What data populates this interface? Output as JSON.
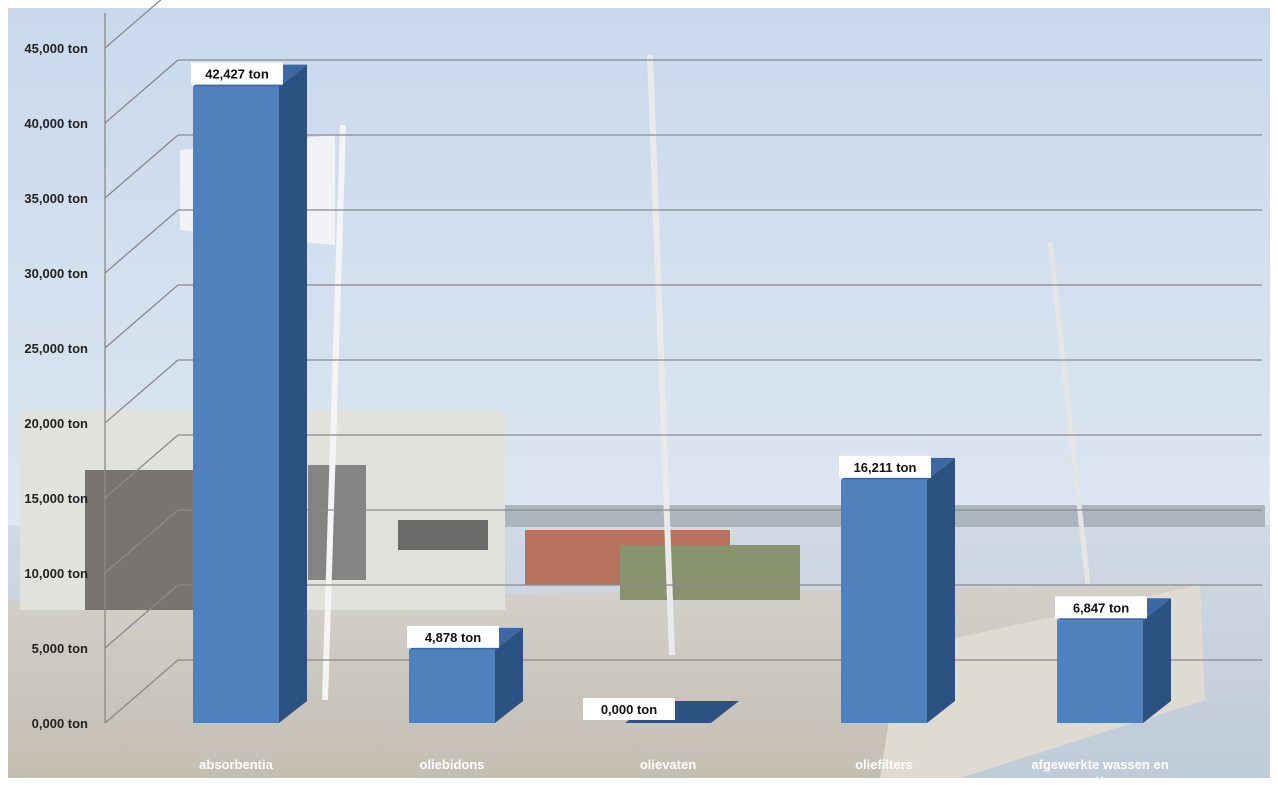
{
  "chart_data": {
    "type": "bar",
    "categories": [
      "absorbentia",
      "oliebidons",
      "olievaten",
      "oliefilters",
      "afgewerkte wassen en vetten"
    ],
    "values": [
      42.427,
      4.878,
      0.0,
      16.211,
      6.847
    ],
    "data_labels": [
      "42,427 ton",
      "4,878 ton",
      "0,000 ton",
      "16,211 ton",
      "6,847 ton"
    ],
    "y_ticks": [
      0,
      5,
      10,
      15,
      20,
      25,
      30,
      35,
      40,
      45
    ],
    "y_tick_labels": [
      "0,000 ton",
      "5,000 ton",
      "10,000 ton",
      "15,000 ton",
      "20,000 ton",
      "25,000 ton",
      "30,000 ton",
      "35,000 ton",
      "40,000 ton",
      "45,000 ton"
    ],
    "ylim": [
      0,
      48
    ],
    "title": "",
    "xlabel": "",
    "ylabel": "",
    "grid": true,
    "legend": "none",
    "style": "3d-column",
    "colors": {
      "bar_front": "#4f81bd",
      "bar_side": "#2c5282",
      "bar_top": "#3a68a5",
      "gridline": "#8a8a8a",
      "photo_background": "photo"
    }
  }
}
